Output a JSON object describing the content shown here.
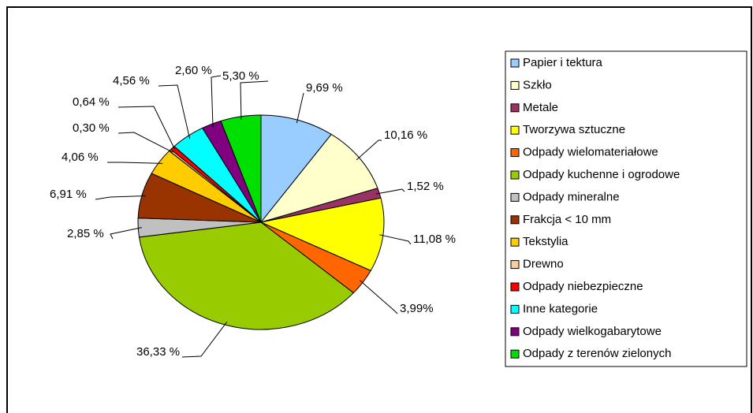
{
  "chart_data": {
    "type": "pie",
    "categories": [
      "Papier i tektura",
      "Szkło",
      "Metale",
      "Tworzywa sztuczne",
      "Odpady wielomateriałowe",
      "Odpady kuchenne i ogrodowe",
      "Odpady mineralne",
      "Frakcja < 10 mm",
      "Tekstylia",
      "Drewno",
      "Odpady niebezpieczne",
      "Inne kategorie",
      "Odpady wielkogabarytowe",
      "Odpady z terenów zielonych"
    ],
    "values": [
      9.69,
      10.16,
      1.52,
      11.08,
      3.99,
      36.33,
      2.85,
      6.91,
      4.06,
      0.3,
      0.64,
      4.56,
      2.6,
      5.3
    ],
    "value_labels": [
      "9,69 %",
      "10,16 %",
      "1,52 %",
      "11,08 %",
      "3,99%",
      "36,33 %",
      "2,85 %",
      "6,91 %",
      "4,06 %",
      "0,30 %",
      "0,64 %",
      "4,56 %",
      "2,60 %",
      "5,30 %"
    ],
    "colors": [
      "#99ccff",
      "#ffffcc",
      "#993366",
      "#ffff00",
      "#ff6600",
      "#99cc00",
      "#c0c0c0",
      "#993300",
      "#ffcc00",
      "#ffcc99",
      "#ff0000",
      "#00ffff",
      "#800080",
      "#00e000"
    ],
    "legend": "right"
  }
}
